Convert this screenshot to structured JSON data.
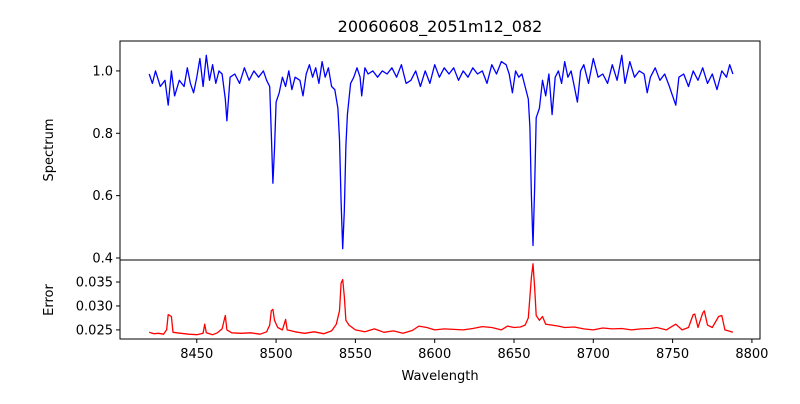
{
  "chart_data": [
    {
      "type": "line",
      "title": "20060608_2051m12_082",
      "xlabel": "",
      "ylabel": "Spectrum",
      "xlim": [
        8401.6,
        8805.1
      ],
      "ylim": [
        0.3936,
        1.096
      ],
      "yticks": [
        "0.4",
        "0.6",
        "0.8",
        "1.0"
      ],
      "ytick_values": [
        0.4,
        0.6,
        0.8,
        1.0
      ],
      "color": "#0000ff",
      "x": [
        8420,
        8422,
        8424,
        8427,
        8430,
        8432,
        8434,
        8436,
        8439,
        8442,
        8444,
        8446,
        8448,
        8450,
        8452,
        8454,
        8456,
        8458,
        8460,
        8462,
        8464,
        8466,
        8468,
        8469,
        8471,
        8474,
        8477,
        8480,
        8483,
        8486,
        8489,
        8492,
        8494,
        8496,
        8497,
        8498,
        8499,
        8500,
        8502,
        8504,
        8506,
        8508,
        8510,
        8512,
        8515,
        8517,
        8519,
        8521,
        8523,
        8525,
        8527,
        8529,
        8531,
        8533,
        8535,
        8537,
        8539,
        8540,
        8541,
        8542,
        8543,
        8544,
        8545,
        8547,
        8549,
        8551,
        8553,
        8554,
        8556,
        8558,
        8561,
        8564,
        8567,
        8570,
        8573,
        8576,
        8579,
        8582,
        8585,
        8588,
        8591,
        8594,
        8597,
        8600,
        8603,
        8606,
        8609,
        8612,
        8615,
        8618,
        8621,
        8624,
        8627,
        8630,
        8633,
        8636,
        8639,
        8642,
        8645,
        8647,
        8649,
        8651,
        8653,
        8655,
        8657,
        8659,
        8660,
        8661,
        8662,
        8663,
        8664,
        8666,
        8668,
        8670,
        8672,
        8674,
        8676,
        8678,
        8680,
        8682,
        8684,
        8686,
        8688,
        8690,
        8692,
        8694,
        8697,
        8700,
        8703,
        8706,
        8709,
        8712,
        8715,
        8718,
        8720,
        8723,
        8726,
        8729,
        8732,
        8734,
        8736,
        8739,
        8742,
        8745,
        8748,
        8750,
        8752,
        8754,
        8757,
        8760,
        8763,
        8766,
        8769,
        8772,
        8775,
        8778,
        8781,
        8784,
        8786,
        8788
      ],
      "y": [
        0.99,
        0.96,
        1.0,
        0.95,
        0.97,
        0.89,
        1.0,
        0.92,
        0.97,
        0.95,
        1.01,
        0.96,
        0.93,
        0.98,
        1.04,
        0.95,
        1.05,
        0.97,
        1.02,
        0.96,
        1.0,
        0.99,
        0.91,
        0.84,
        0.98,
        0.99,
        0.96,
        1.01,
        0.97,
        1.0,
        0.98,
        1.0,
        0.97,
        0.95,
        0.8,
        0.64,
        0.75,
        0.9,
        0.93,
        0.98,
        0.95,
        1.0,
        0.94,
        0.98,
        0.97,
        0.92,
        0.99,
        1.02,
        0.98,
        1.01,
        0.96,
        1.03,
        0.98,
        1.01,
        0.95,
        0.94,
        0.88,
        0.78,
        0.58,
        0.43,
        0.55,
        0.76,
        0.86,
        0.96,
        0.98,
        1.01,
        0.98,
        0.92,
        1.01,
        0.99,
        1.0,
        0.98,
        1.0,
        0.99,
        1.01,
        0.98,
        1.02,
        0.96,
        0.97,
        1.0,
        0.95,
        1.0,
        0.96,
        1.02,
        0.98,
        1.01,
        0.99,
        1.01,
        0.97,
        1.0,
        0.98,
        1.01,
        0.99,
        1.0,
        0.96,
        1.02,
        0.99,
        1.03,
        1.02,
        0.99,
        0.93,
        1.0,
        0.98,
        0.99,
        0.95,
        0.91,
        0.82,
        0.6,
        0.44,
        0.62,
        0.85,
        0.88,
        0.97,
        0.92,
        0.99,
        0.86,
        0.98,
        1.0,
        0.96,
        1.03,
        0.98,
        1.0,
        0.95,
        0.9,
        1.0,
        1.02,
        0.96,
        1.04,
        0.98,
        0.99,
        0.96,
        1.02,
        0.97,
        1.05,
        0.96,
        1.03,
        0.98,
        1.0,
        0.99,
        0.93,
        0.98,
        1.01,
        0.97,
        0.99,
        0.95,
        0.92,
        0.89,
        0.98,
        0.99,
        0.95,
        1.0,
        0.97,
        1.01,
        0.96,
        0.99,
        0.94,
        1.0,
        0.98,
        1.02,
        0.99
      ]
    },
    {
      "type": "line",
      "title": "",
      "xlabel": "Wavelength",
      "ylabel": "Error",
      "xlim": [
        8401.6,
        8805.1
      ],
      "ylim": [
        0.0231,
        0.0396
      ],
      "xticks": [
        "8450",
        "8500",
        "8550",
        "8600",
        "8650",
        "8700",
        "8750",
        "8800"
      ],
      "xtick_values": [
        8450,
        8500,
        8550,
        8600,
        8650,
        8700,
        8750,
        8800
      ],
      "yticks": [
        "0.025",
        "0.030",
        "0.035"
      ],
      "ytick_values": [
        0.025,
        0.03,
        0.035
      ],
      "color": "#ff0000",
      "x": [
        8420,
        8423,
        8426,
        8429,
        8431,
        8432,
        8434,
        8435,
        8440,
        8445,
        8450,
        8454,
        8455,
        8456,
        8460,
        8463,
        8466,
        8468,
        8469,
        8472,
        8478,
        8484,
        8490,
        8494,
        8496,
        8497,
        8498,
        8499,
        8501,
        8504,
        8506,
        8507,
        8512,
        8518,
        8524,
        8530,
        8535,
        8538,
        8540,
        8541,
        8542,
        8543,
        8544,
        8546,
        8550,
        8556,
        8562,
        8568,
        8574,
        8580,
        8586,
        8590,
        8595,
        8600,
        8606,
        8612,
        8618,
        8624,
        8630,
        8636,
        8642,
        8646,
        8650,
        8654,
        8657,
        8659,
        8661,
        8662,
        8663,
        8664,
        8666,
        8668,
        8670,
        8674,
        8678,
        8682,
        8688,
        8694,
        8700,
        8706,
        8712,
        8718,
        8724,
        8730,
        8736,
        8740,
        8746,
        8750,
        8752,
        8756,
        8760,
        8763,
        8764,
        8766,
        8769,
        8770,
        8772,
        8775,
        8779,
        8781,
        8783,
        8786,
        8788
      ],
      "y": [
        0.0245,
        0.0242,
        0.0243,
        0.0241,
        0.025,
        0.0282,
        0.0278,
        0.0245,
        0.0243,
        0.0241,
        0.024,
        0.0243,
        0.0262,
        0.0244,
        0.024,
        0.0244,
        0.0252,
        0.028,
        0.025,
        0.0244,
        0.0243,
        0.0244,
        0.0241,
        0.0246,
        0.026,
        0.029,
        0.0293,
        0.027,
        0.0255,
        0.025,
        0.0272,
        0.025,
        0.0246,
        0.0243,
        0.0246,
        0.0242,
        0.0248,
        0.0262,
        0.029,
        0.0348,
        0.0355,
        0.032,
        0.027,
        0.026,
        0.025,
        0.0246,
        0.0252,
        0.0245,
        0.0248,
        0.0243,
        0.0249,
        0.0258,
        0.0255,
        0.025,
        0.0252,
        0.0251,
        0.025,
        0.0253,
        0.0257,
        0.0255,
        0.025,
        0.0258,
        0.0255,
        0.0256,
        0.026,
        0.0275,
        0.036,
        0.0388,
        0.034,
        0.028,
        0.027,
        0.0278,
        0.0262,
        0.026,
        0.0258,
        0.0255,
        0.0256,
        0.0252,
        0.025,
        0.0254,
        0.0252,
        0.0253,
        0.025,
        0.0252,
        0.0253,
        0.0255,
        0.025,
        0.0258,
        0.0262,
        0.025,
        0.0255,
        0.0282,
        0.0283,
        0.0255,
        0.0285,
        0.029,
        0.026,
        0.0255,
        0.0278,
        0.028,
        0.025,
        0.0247,
        0.0245
      ]
    }
  ]
}
